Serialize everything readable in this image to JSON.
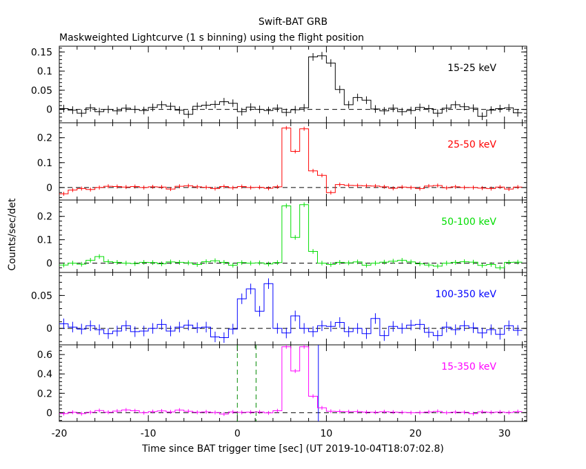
{
  "header": {
    "title": "Swift-BAT GRB",
    "subtitle": "Maskweighted Lightcurve (1 s binning) using the flight position"
  },
  "xlabel": "Time since BAT trigger time [sec] (UT 2019-10-04T18:07:02.8)",
  "ylabel": "Counts/sec/det",
  "xlim": [
    -20,
    32.5
  ],
  "x_ticks": [
    "-20",
    "-10",
    "0",
    "10",
    "20",
    "30"
  ],
  "x_tick_values": [
    -20,
    -10,
    0,
    10,
    20,
    30
  ],
  "colors": {
    "axis": "#000000",
    "band_15_25": "#000000",
    "band_25_50": "#ff0000",
    "band_50_100": "#00dd00",
    "band_100_350": "#0000ff",
    "band_15_350": "#ff00ff",
    "marker_line": "#008800",
    "spike_line": "#0000ff"
  },
  "chart_data": [
    {
      "type": "line",
      "step": true,
      "name": "15-25 keV",
      "color": "#000000",
      "ylim": [
        -0.035,
        0.165
      ],
      "yticks": [
        0,
        0.05,
        0.1,
        0.15
      ],
      "ytick_labels": [
        "0",
        "0.05",
        "0.1",
        "0.15"
      ],
      "x_start": -20,
      "bin_width": 1,
      "values": [
        0.002,
        -0.002,
        -0.01,
        0.004,
        -0.006,
        0.0,
        -0.004,
        0.003,
        0.0,
        -0.003,
        0.005,
        0.012,
        0.008,
        -0.002,
        -0.013,
        0.008,
        0.011,
        0.013,
        0.02,
        0.016,
        -0.006,
        0.006,
        0.0,
        -0.003,
        0.003,
        -0.008,
        -0.001,
        0.004,
        0.137,
        0.14,
        0.121,
        0.052,
        0.012,
        0.031,
        0.024,
        0.001,
        -0.004,
        0.003,
        -0.006,
        -0.003,
        0.005,
        0.002,
        -0.01,
        0.003,
        0.012,
        0.007,
        0.003,
        -0.018,
        -0.002,
        0.002,
        0.004,
        -0.009
      ],
      "errors": 0.01
    },
    {
      "type": "line",
      "step": true,
      "name": "25-50 keV",
      "color": "#ff0000",
      "ylim": [
        -0.05,
        0.26
      ],
      "yticks": [
        0,
        0.1,
        0.2
      ],
      "ytick_labels": [
        "0",
        "0.1",
        "0.2"
      ],
      "x_start": -20,
      "bin_width": 1,
      "values": [
        -0.025,
        -0.01,
        -0.004,
        -0.008,
        0.0,
        0.005,
        0.004,
        0.002,
        0.004,
        0.0,
        0.003,
        0.002,
        -0.006,
        0.005,
        0.007,
        0.003,
        0.001,
        -0.004,
        0.004,
        -0.001,
        0.004,
        0.0,
        0.001,
        -0.003,
        0.003,
        0.239,
        0.145,
        0.236,
        0.067,
        0.049,
        -0.02,
        0.012,
        0.009,
        0.008,
        0.007,
        0.006,
        0.003,
        -0.003,
        0.002,
        0.0,
        -0.004,
        0.006,
        0.008,
        -0.001,
        0.003,
        0.0,
        0.0,
        -0.002,
        -0.004,
        0.002,
        -0.006,
        0.002
      ],
      "errors": 0.008
    },
    {
      "type": "line",
      "step": true,
      "name": "50-100 keV",
      "color": "#00dd00",
      "ylim": [
        -0.04,
        0.27
      ],
      "yticks": [
        0,
        0.1,
        0.2
      ],
      "ytick_labels": [
        "0",
        "0.1",
        "0.2"
      ],
      "x_start": -20,
      "bin_width": 1,
      "values": [
        -0.008,
        0.0,
        -0.005,
        0.012,
        0.028,
        0.006,
        0.003,
        0.0,
        -0.002,
        0.003,
        0.002,
        -0.003,
        0.005,
        0.003,
        0.001,
        -0.006,
        0.006,
        0.01,
        0.003,
        -0.009,
        0.002,
        0.0,
        0.001,
        -0.004,
        0.002,
        0.245,
        0.11,
        0.25,
        0.05,
        0.0,
        -0.006,
        0.003,
        0.001,
        0.005,
        -0.009,
        0.0,
        0.004,
        0.008,
        0.012,
        0.005,
        -0.003,
        -0.008,
        -0.013,
        0.0,
        0.003,
        0.006,
        0.004,
        -0.01,
        -0.006,
        -0.02,
        0.003,
        0.004
      ],
      "errors": 0.01
    },
    {
      "type": "line",
      "step": true,
      "name": "100-350 keV",
      "color": "#0000ff",
      "ylim": [
        -0.025,
        0.085
      ],
      "yticks": [
        0,
        0.05
      ],
      "ytick_labels": [
        "0",
        "0.05"
      ],
      "x_start": -20,
      "bin_width": 1,
      "values": [
        0.007,
        0.002,
        -0.001,
        0.004,
        -0.002,
        -0.008,
        -0.004,
        0.004,
        -0.005,
        -0.004,
        0.0,
        0.006,
        -0.004,
        0.002,
        0.005,
        0.001,
        0.002,
        -0.013,
        -0.014,
        -0.001,
        0.045,
        0.06,
        0.026,
        0.068,
        0.0,
        -0.007,
        0.019,
        0.0,
        -0.005,
        0.004,
        0.003,
        0.009,
        -0.005,
        0.0,
        -0.008,
        0.015,
        -0.011,
        0.003,
        0.0,
        0.005,
        0.006,
        -0.006,
        -0.011,
        0.002,
        -0.002,
        0.004,
        0.001,
        -0.007,
        -0.002,
        -0.009,
        0.004,
        -0.003
      ],
      "errors": 0.008
    },
    {
      "type": "line",
      "step": true,
      "name": "15-350 keV",
      "color": "#ff00ff",
      "ylim": [
        -0.09,
        0.7
      ],
      "yticks": [
        0,
        0.2,
        0.4,
        0.6
      ],
      "ytick_labels": [
        "0",
        "0.2",
        "0.4",
        "0.6"
      ],
      "x_start": -20,
      "bin_width": 1,
      "values": [
        -0.01,
        0.005,
        -0.01,
        0.004,
        0.022,
        0.005,
        0.017,
        0.028,
        0.02,
        0.0,
        0.012,
        0.018,
        0.008,
        0.027,
        0.015,
        0.004,
        0.009,
        0.002,
        -0.014,
        0.008,
        0.003,
        0.006,
        0.008,
        -0.002,
        0.02,
        0.68,
        0.43,
        0.68,
        0.17,
        0.05,
        0.015,
        0.013,
        0.01,
        0.012,
        0.006,
        0.005,
        0.01,
        0.006,
        0.003,
        0.0,
        0.002,
        0.008,
        0.014,
        0.0,
        0.006,
        0.004,
        -0.01,
        0.009,
        0.003,
        0.007,
        0.002,
        0.012
      ],
      "errors": 0.02,
      "vertical_lines": [
        {
          "x": 0.0,
          "style": "dashed",
          "color": "#008800"
        },
        {
          "x": 2.1,
          "style": "dashed",
          "color": "#008800"
        },
        {
          "x": 9.1,
          "style": "solid",
          "color": "#0000ff"
        }
      ]
    }
  ]
}
